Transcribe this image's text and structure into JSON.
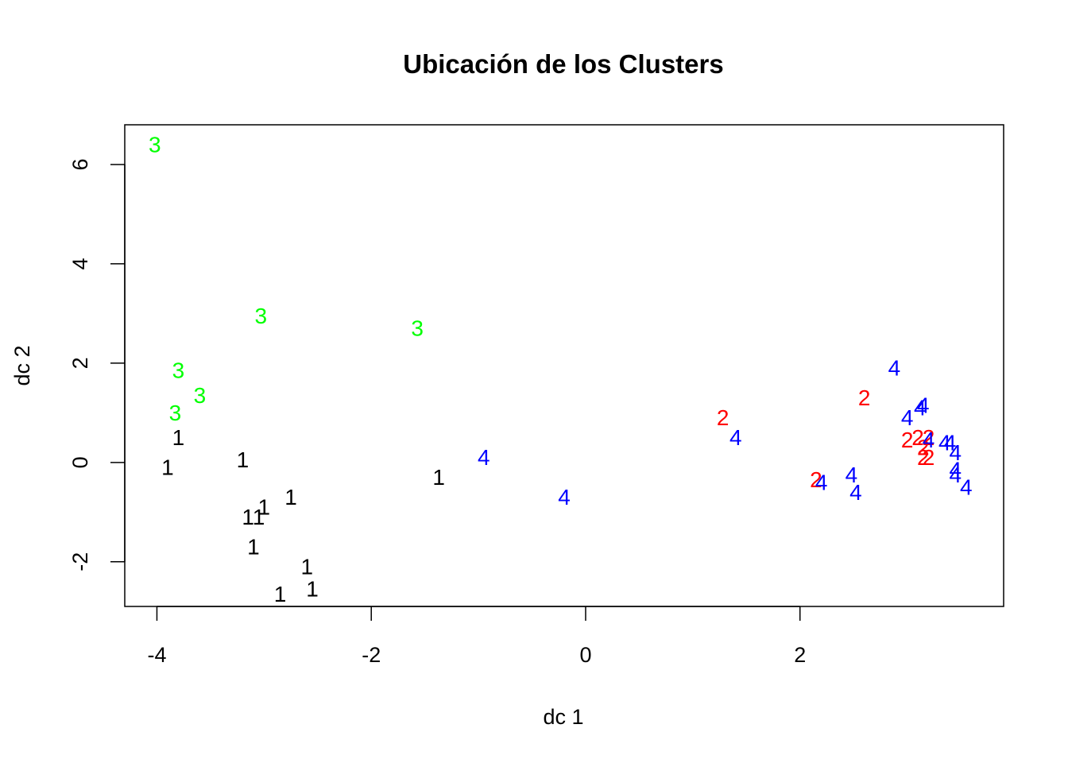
{
  "chart_data": {
    "type": "scatter",
    "title": "Ubicación de los Clusters",
    "xlabel": "dc 1",
    "ylabel": "dc 2",
    "xlim": [
      -4.3,
      3.9
    ],
    "ylim": [
      -2.9,
      6.8
    ],
    "xticks": [
      -4,
      -2,
      0,
      2
    ],
    "yticks": [
      -2,
      0,
      2,
      4,
      6
    ],
    "grid": false,
    "legend": "none",
    "marker": "cluster number glyph",
    "series": [
      {
        "label": "1",
        "color": "#000000",
        "points": [
          [
            -3.8,
            0.5
          ],
          [
            -3.9,
            -0.1
          ],
          [
            -3.2,
            0.05
          ],
          [
            -1.37,
            -0.3
          ],
          [
            -2.75,
            -0.7
          ],
          [
            -3.0,
            -0.9
          ],
          [
            -3.15,
            -1.1
          ],
          [
            -3.05,
            -1.1
          ],
          [
            -3.1,
            -1.7
          ],
          [
            -2.6,
            -2.1
          ],
          [
            -2.55,
            -2.55
          ],
          [
            -2.85,
            -2.65
          ]
        ]
      },
      {
        "label": "2",
        "color": "#ff0000",
        "points": [
          [
            2.6,
            1.3
          ],
          [
            1.28,
            0.9
          ],
          [
            3.0,
            0.45
          ],
          [
            3.1,
            0.5
          ],
          [
            3.2,
            0.5
          ],
          [
            3.15,
            0.3
          ],
          [
            3.15,
            0.1
          ],
          [
            3.2,
            0.1
          ],
          [
            2.15,
            -0.35
          ]
        ]
      },
      {
        "label": "3",
        "color": "#00ff00",
        "points": [
          [
            -4.02,
            6.4
          ],
          [
            -3.03,
            2.95
          ],
          [
            -1.57,
            2.7
          ],
          [
            -3.8,
            1.85
          ],
          [
            -3.6,
            1.35
          ],
          [
            -3.83,
            1.0
          ]
        ]
      },
      {
        "label": "4",
        "color": "#0000ff",
        "points": [
          [
            2.88,
            1.9
          ],
          [
            3.15,
            1.15
          ],
          [
            3.12,
            1.1
          ],
          [
            3.0,
            0.9
          ],
          [
            1.4,
            0.5
          ],
          [
            3.2,
            0.45
          ],
          [
            3.35,
            0.4
          ],
          [
            3.4,
            0.4
          ],
          [
            3.45,
            0.2
          ],
          [
            -0.95,
            0.1
          ],
          [
            2.48,
            -0.25
          ],
          [
            3.45,
            -0.15
          ],
          [
            3.45,
            -0.25
          ],
          [
            2.2,
            -0.4
          ],
          [
            3.55,
            -0.5
          ],
          [
            2.52,
            -0.6
          ],
          [
            -0.2,
            -0.7
          ]
        ]
      }
    ]
  }
}
